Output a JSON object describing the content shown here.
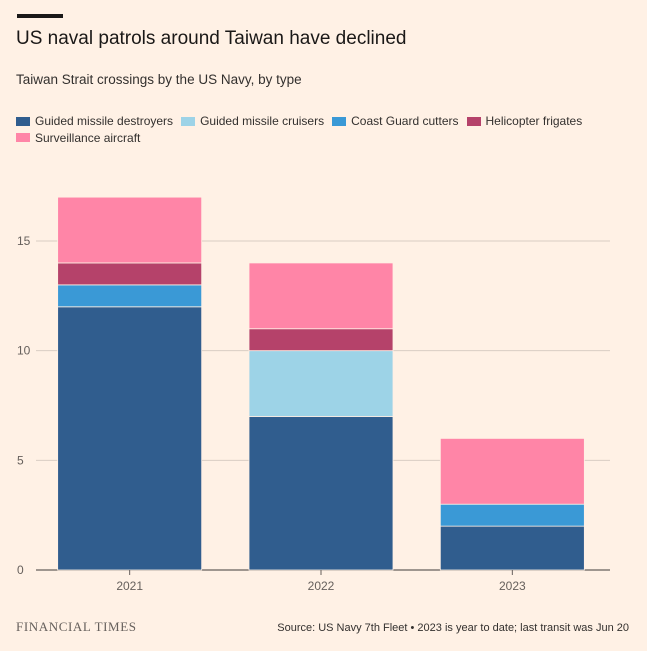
{
  "title": "US naval patrols around Taiwan have declined",
  "subtitle": "Taiwan Strait crossings by the US Navy, by type",
  "footer": {
    "logo": "FINANCIAL TIMES",
    "source": "Source: US Navy 7th Fleet • 2023 is year to date; last transit was Jun 20"
  },
  "chart_data": {
    "type": "bar",
    "stacked": true,
    "categories": [
      "2021",
      "2022",
      "2023"
    ],
    "series": [
      {
        "name": "Guided missile destroyers",
        "color": "#305d8e",
        "values": [
          12,
          7,
          2
        ]
      },
      {
        "name": "Guided missile cruisers",
        "color": "#9dd3e7",
        "values": [
          0,
          3,
          0
        ]
      },
      {
        "name": "Coast Guard cutters",
        "color": "#3a99d6",
        "values": [
          1,
          0,
          1
        ]
      },
      {
        "name": "Helicopter frigates",
        "color": "#b5426a",
        "values": [
          1,
          1,
          0
        ]
      },
      {
        "name": "Surveillance aircraft",
        "color": "#ff85a7",
        "values": [
          3,
          3,
          3
        ]
      }
    ],
    "yticks": [
      0,
      5,
      10,
      15
    ],
    "ylim": [
      0,
      17
    ],
    "xlabel": "",
    "ylabel": "",
    "grid": true,
    "legend_position": "top"
  }
}
